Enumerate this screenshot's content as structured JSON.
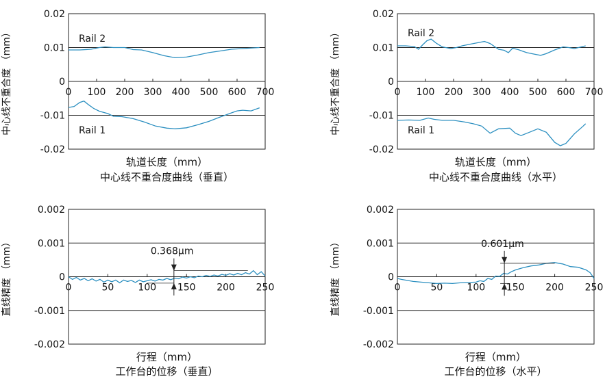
{
  "chart_data": [
    {
      "type": "line",
      "title": "中心线不重合度曲线（垂直）",
      "xlabel": "轨道长度（mm）",
      "ylabel": "中心线不重合度 （mm）",
      "xlim": [
        0,
        700
      ],
      "ylim": [
        -0.02,
        0.02
      ],
      "xticks": [
        0,
        100,
        200,
        300,
        400,
        500,
        600,
        700
      ],
      "xtick_labels": [
        "0",
        "100",
        "200",
        "300",
        "400",
        "500",
        "600",
        "700"
      ],
      "yticks": [
        0.02,
        0.01,
        0,
        -0.01,
        -0.02
      ],
      "ytick_labels": [
        "0.02",
        "0.01",
        "0",
        "-0.01",
        "-0.02"
      ],
      "grid": "horizontal",
      "annotations": [
        "Rail 2",
        "Rail 1"
      ],
      "series": [
        {
          "name": "Rail 2",
          "color": "#2b8fc0",
          "x": [
            0,
            40,
            80,
            110,
            130,
            160,
            200,
            230,
            260,
            300,
            340,
            380,
            420,
            460,
            500,
            540,
            580,
            620,
            660,
            680
          ],
          "y": [
            0.0093,
            0.0093,
            0.0095,
            0.01,
            0.0102,
            0.01,
            0.01,
            0.0094,
            0.0093,
            0.0085,
            0.0076,
            0.007,
            0.0072,
            0.0078,
            0.0085,
            0.009,
            0.0095,
            0.0097,
            0.0099,
            0.01
          ]
        },
        {
          "name": "Rail 1",
          "color": "#2b8fc0",
          "x": [
            0,
            20,
            40,
            55,
            70,
            90,
            110,
            140,
            160,
            190,
            230,
            270,
            310,
            350,
            380,
            420,
            460,
            500,
            540,
            580,
            600,
            620,
            650,
            680
          ],
          "y": [
            -0.0077,
            -0.0074,
            -0.0062,
            -0.0058,
            -0.0068,
            -0.008,
            -0.0088,
            -0.0095,
            -0.0103,
            -0.0104,
            -0.011,
            -0.012,
            -0.0132,
            -0.0138,
            -0.014,
            -0.0137,
            -0.0128,
            -0.0118,
            -0.0105,
            -0.0093,
            -0.0087,
            -0.0085,
            -0.0087,
            -0.0078
          ]
        }
      ]
    },
    {
      "type": "line",
      "title": "中心线不重合度曲线（水平）",
      "xlabel": "轨道长度（mm）",
      "ylabel": "中心线不重合度 （mm）",
      "xlim": [
        0,
        700
      ],
      "ylim": [
        -0.02,
        0.02
      ],
      "xticks": [
        0,
        100,
        200,
        300,
        400,
        500,
        600,
        700
      ],
      "xtick_labels": [
        "0",
        "100",
        "200",
        "300",
        "400",
        "500",
        "600",
        "700"
      ],
      "yticks": [
        0.02,
        0.01,
        0,
        -0.01,
        -0.02
      ],
      "ytick_labels": [
        "0.02",
        "0.01",
        "0",
        "-0.01",
        "-0.02"
      ],
      "grid": "horizontal",
      "annotations": [
        "Rail 2",
        "Rail 1"
      ],
      "series": [
        {
          "name": "Rail 2",
          "color": "#2b8fc0",
          "x": [
            0,
            30,
            60,
            75,
            90,
            105,
            120,
            140,
            160,
            190,
            210,
            230,
            260,
            290,
            310,
            330,
            360,
            380,
            395,
            410,
            430,
            460,
            490,
            510,
            530,
            560,
            590,
            610,
            630,
            660,
            670
          ],
          "y": [
            0.0105,
            0.0105,
            0.0103,
            0.0095,
            0.0108,
            0.012,
            0.0125,
            0.0112,
            0.0102,
            0.0097,
            0.01,
            0.0105,
            0.011,
            0.0115,
            0.0118,
            0.0112,
            0.0095,
            0.0092,
            0.0085,
            0.0098,
            0.0094,
            0.0085,
            0.008,
            0.0077,
            0.0082,
            0.0093,
            0.0102,
            0.01,
            0.0097,
            0.0103,
            0.0105
          ]
        },
        {
          "name": "Rail 1",
          "color": "#2b8fc0",
          "x": [
            0,
            40,
            80,
            110,
            130,
            160,
            200,
            240,
            270,
            300,
            330,
            360,
            400,
            420,
            440,
            470,
            500,
            530,
            560,
            580,
            600,
            630,
            660,
            670
          ],
          "y": [
            -0.0115,
            -0.0114,
            -0.0115,
            -0.0108,
            -0.0112,
            -0.0115,
            -0.0115,
            -0.012,
            -0.0125,
            -0.0132,
            -0.0153,
            -0.014,
            -0.0138,
            -0.0153,
            -0.016,
            -0.015,
            -0.014,
            -0.015,
            -0.018,
            -0.019,
            -0.0183,
            -0.0155,
            -0.0133,
            -0.0125
          ]
        }
      ]
    },
    {
      "type": "line",
      "title": "工作台的位移（垂直）",
      "xlabel": "行程（mm）",
      "ylabel": "直线精度 （mm）",
      "xlim": [
        0,
        250
      ],
      "ylim": [
        -0.002,
        0.002
      ],
      "xticks": [
        0,
        50,
        100,
        150,
        200,
        250
      ],
      "xtick_labels": [
        "0",
        "50",
        "100",
        "150",
        "200",
        "250"
      ],
      "yticks": [
        0.002,
        0.001,
        0,
        -0.001,
        -0.002
      ],
      "ytick_labels": [
        "0.002",
        "0.001",
        "0",
        "-0.001",
        "-0.002"
      ],
      "grid": "horizontal",
      "annotation": "0.368μm",
      "annotation_levels": [
        0.00018,
        -0.00019
      ],
      "annotation_x": 134,
      "series": [
        {
          "name": "",
          "color": "#2b8fc0",
          "x": [
            0,
            5,
            10,
            15,
            20,
            25,
            30,
            35,
            40,
            45,
            50,
            55,
            60,
            65,
            70,
            75,
            80,
            85,
            90,
            95,
            100,
            105,
            110,
            115,
            120,
            125,
            130,
            135,
            140,
            145,
            150,
            155,
            160,
            165,
            170,
            175,
            180,
            185,
            190,
            195,
            200,
            205,
            210,
            215,
            220,
            225,
            230,
            235,
            240,
            245,
            250
          ],
          "y": [
            0.0,
            -8e-05,
            -2e-05,
            -0.0001,
            -5e-05,
            -0.00012,
            -6e-05,
            -0.00013,
            -8e-05,
            -0.00016,
            -0.0001,
            -0.00015,
            -0.0001,
            -0.00018,
            -0.0001,
            -0.00014,
            -0.00011,
            -0.00017,
            -0.0001,
            -0.00015,
            -0.00012,
            -9e-05,
            -0.00013,
            -8e-05,
            -0.0001,
            -5e-05,
            -9e-05,
            -4e-05,
            -6e-05,
            -1e-05,
            -4e-05,
            0.0,
            -3e-05,
            2e-05,
            0.0,
            4e-05,
            1e-05,
            5e-05,
            2e-05,
            7e-05,
            4e-05,
            9e-05,
            5e-05,
            0.0001,
            6e-05,
            0.00012,
            8e-05,
            0.00018,
            6e-05,
            0.00015,
            2e-05
          ]
        }
      ]
    },
    {
      "type": "line",
      "title": "工作台的位移（水平）",
      "xlabel": "行程（mm）",
      "ylabel": "直线精度 （mm）",
      "xlim": [
        0,
        250
      ],
      "ylim": [
        -0.002,
        0.002
      ],
      "xticks": [
        0,
        50,
        100,
        150,
        200,
        250
      ],
      "xtick_labels": [
        "0",
        "50",
        "100",
        "150",
        "200",
        "250"
      ],
      "yticks": [
        0.002,
        0.001,
        0,
        -0.001,
        -0.002
      ],
      "ytick_labels": [
        "0.002",
        "0.001",
        "0",
        "-0.001",
        "-0.002"
      ],
      "grid": "horizontal",
      "annotation": "0.601μm",
      "annotation_levels": [
        0.0004,
        -0.0002
      ],
      "annotation_x": 136,
      "series": [
        {
          "name": "",
          "color": "#2b8fc0",
          "x": [
            0,
            5,
            10,
            15,
            20,
            30,
            40,
            50,
            60,
            70,
            80,
            90,
            100,
            105,
            110,
            115,
            120,
            125,
            130,
            135,
            140,
            145,
            150,
            160,
            170,
            180,
            190,
            200,
            210,
            220,
            230,
            240,
            245,
            250
          ],
          "y": [
            -5e-05,
            -8e-05,
            -0.0001,
            -0.00012,
            -0.00014,
            -0.00016,
            -0.00018,
            -0.0002,
            -0.00019,
            -0.0002,
            -0.00018,
            -0.00017,
            -0.00016,
            -0.00012,
            -0.00014,
            -5e-05,
            -8e-05,
            2e-05,
            1e-05,
            0.0001,
            8e-05,
            0.00015,
            0.0002,
            0.00027,
            0.00032,
            0.00035,
            0.0004,
            0.00042,
            0.00038,
            0.0003,
            0.00028,
            0.0002,
            0.00012,
            -5e-05
          ]
        }
      ]
    }
  ]
}
